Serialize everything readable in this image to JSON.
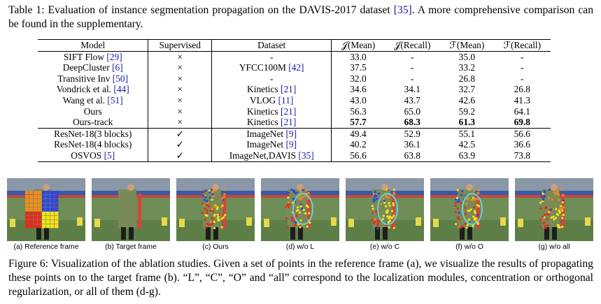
{
  "table_caption": {
    "label": "Table 1:",
    "text_before_cite": "Evaluation of instance segmentation propagation on the DAVIS-2017 dataset ",
    "cite": "[35]",
    "text_after_cite": ". A more comprehensive comparison can be found in the supplementary."
  },
  "table": {
    "headers": [
      "Model",
      "Supervised",
      "Dataset",
      "𝒥(Mean)",
      "𝒥(Recall)",
      "ℱ(Mean)",
      "ℱ(Recall)"
    ],
    "groups": [
      [
        {
          "model": "SIFT Flow ",
          "model_cite": "[29]",
          "sup": "×",
          "dataset": "-",
          "dataset_cite": "",
          "jm": "33.0",
          "jr": "-",
          "fm": "35.0",
          "fr": "-",
          "bold": false
        },
        {
          "model": "DeepCluster ",
          "model_cite": "[6]",
          "sup": "×",
          "dataset": "YFCC100M ",
          "dataset_cite": "[42]",
          "jm": "37.5",
          "jr": "-",
          "fm": "33.2",
          "fr": "-",
          "bold": false
        },
        {
          "model": "Transitive Inv ",
          "model_cite": "[50]",
          "sup": "×",
          "dataset": "-",
          "dataset_cite": "",
          "jm": "32.0",
          "jr": "-",
          "fm": "26.8",
          "fr": "-",
          "bold": false
        },
        {
          "model": "Vondrick et al. ",
          "model_cite": "[44]",
          "sup": "×",
          "dataset": "Kinetics ",
          "dataset_cite": "[21]",
          "jm": "34.6",
          "jr": "34.1",
          "fm": "32.7",
          "fr": "26.8",
          "bold": false
        },
        {
          "model": "Wang et al. ",
          "model_cite": "[51]",
          "sup": "×",
          "dataset": "VLOG ",
          "dataset_cite": "[11]",
          "jm": "43.0",
          "jr": "43.7",
          "fm": "42.6",
          "fr": "41.3",
          "bold": false
        },
        {
          "model": "Ours",
          "model_cite": "",
          "sup": "×",
          "dataset": "Kinetics ",
          "dataset_cite": "[21]",
          "jm": "56.3",
          "jr": "65.0",
          "fm": "59.2",
          "fr": "64.1",
          "bold": false
        },
        {
          "model": "Ours-track",
          "model_cite": "",
          "sup": "×",
          "dataset": "Kinetics ",
          "dataset_cite": "[21]",
          "jm": "57.7",
          "jr": "68.3",
          "fm": "61.3",
          "fr": "69.8",
          "bold": true
        }
      ],
      [
        {
          "model": "ResNet-18(3 blocks)",
          "model_cite": "",
          "sup": "✓",
          "dataset": "ImageNet ",
          "dataset_cite": "[9]",
          "jm": "49.4",
          "jr": "52.9",
          "fm": "55.1",
          "fr": "56.6",
          "bold": false
        },
        {
          "model": "ResNet-18(4 blocks)",
          "model_cite": "",
          "sup": "✓",
          "dataset": "ImageNet ",
          "dataset_cite": "[9]",
          "jm": "40.2",
          "jr": "36.1",
          "fm": "42.5",
          "fr": "36.6",
          "bold": false
        },
        {
          "model": "OSVOS ",
          "model_cite": "[5]",
          "sup": "✓",
          "dataset": "ImageNet,DAVIS ",
          "dataset_cite": "[35]",
          "jm": "56.6",
          "jr": "63.8",
          "fm": "63.9",
          "fr": "73.8",
          "bold": false
        }
      ]
    ]
  },
  "figure": {
    "panels": [
      {
        "label": "(a) Reference frame",
        "kind": "grid",
        "circle": false
      },
      {
        "label": "(b) Target frame",
        "kind": "plain",
        "circle": false
      },
      {
        "label": "(c) Ours",
        "kind": "scatter",
        "circle": false
      },
      {
        "label": "(d) w/o L",
        "kind": "scatter",
        "circle": true
      },
      {
        "label": "(e) w/o C",
        "kind": "scatter",
        "circle": true
      },
      {
        "label": "(f) w/o O",
        "kind": "scatter",
        "circle": true
      },
      {
        "label": "(g) w/o all",
        "kind": "scatter",
        "circle": false
      }
    ],
    "colors": {
      "red": "#e8281e",
      "blue": "#2a48e0",
      "orange": "#f28c1c",
      "yellow": "#f0e61e",
      "circle": "#62d2dc"
    }
  },
  "figure_caption": {
    "label": "Figure 6:",
    "text": "Visualization of the ablation studies. Given a set of points in the reference frame (a), we visualize the results of propagating these points on to the target frame (b). “L”, “C”, “O” and “all” correspond to the localization modules, concentration or orthogonal regularization, or all of them (d-g)."
  }
}
